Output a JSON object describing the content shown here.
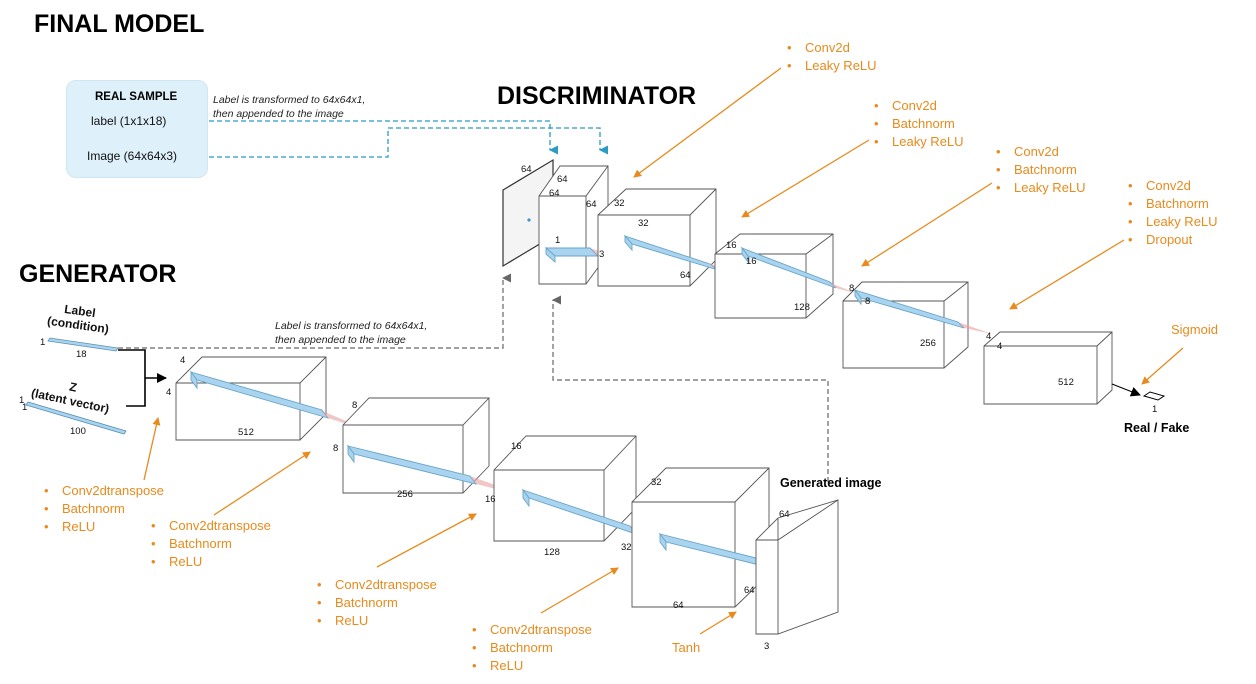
{
  "titles": {
    "main": "FINAL MODEL",
    "discriminator": "DISCRIMINATOR",
    "generator": "GENERATOR"
  },
  "real_sample": {
    "title": "REAL SAMPLE",
    "label_item": "label (1x1x18)",
    "image_item": "Image (64x64x3)"
  },
  "notes": {
    "disc_label_note_line1": "Label is transformed to 64x64x1,",
    "disc_label_note_line2": "then appended to the image",
    "gen_label_note_line1": "Label is transformed to 64x64x1,",
    "gen_label_note_line2": "then appended to the image"
  },
  "generator_inputs": {
    "label_line1": "Label",
    "label_line2": "(condition)",
    "label_dim_side": "1",
    "label_dim_len": "18",
    "z_line1": "Z",
    "z_line2": "(latent vector)",
    "z_dim_side": "1",
    "z_dim_side2": "1",
    "z_dim_len": "100"
  },
  "discriminator_annotations": [
    [
      "Conv2d",
      "Leaky ReLU"
    ],
    [
      "Conv2d",
      "Batchnorm",
      "Leaky ReLU"
    ],
    [
      "Conv2d",
      "Batchnorm",
      "Leaky ReLU"
    ],
    [
      "Conv2d",
      "Batchnorm",
      "Leaky ReLU",
      "Dropout"
    ]
  ],
  "generator_annotations": [
    [
      "Conv2dtranspose",
      "Batchnorm",
      "ReLU"
    ],
    [
      "Conv2dtranspose",
      "Batchnorm",
      "ReLU"
    ],
    [
      "Conv2dtranspose",
      "Batchnorm",
      "ReLU"
    ],
    [
      "Conv2dtranspose",
      "Batchnorm",
      "ReLU"
    ]
  ],
  "single_annotations": {
    "sigmoid": "Sigmoid",
    "tanh": "Tanh"
  },
  "outputs": {
    "real_fake": "Real / Fake",
    "generated_image": "Generated image",
    "final_dim": "1"
  },
  "disc_dims": {
    "img_h": "64",
    "img_w": "64",
    "b1_h": "64",
    "b1_w": "64",
    "b1_k": "1",
    "b1_k2": "3",
    "b2_h": "32",
    "b2_w": "32",
    "b2_c": "64",
    "b3_h": "16",
    "b3_w": "16",
    "b3_c": "128",
    "b4_h": "8",
    "b4_w": "8",
    "b4_c": "256",
    "b5_h": "4",
    "b5_w": "4",
    "b5_c": "512"
  },
  "gen_dims": {
    "g1_h": "4",
    "g1_w": "4",
    "g1_c": "512",
    "g2_h": "8",
    "g2_w": "8",
    "g2_c": "256",
    "g3_h": "16",
    "g3_w": "16",
    "g3_c": "128",
    "g4_h": "32",
    "g4_w": "32",
    "g4_c": "64",
    "g5_h": "64",
    "g5_w": "64",
    "g5_c": "3"
  },
  "colors": {
    "annotation": "#E88A1C",
    "dashed_blue": "#2A9BC4",
    "dashed_gray": "#666666",
    "box_stroke": "#555555",
    "inner_blue": "#A8D4F0",
    "kernel_red": "#E8A0A0",
    "sample_bg": "#DEF0FA"
  }
}
